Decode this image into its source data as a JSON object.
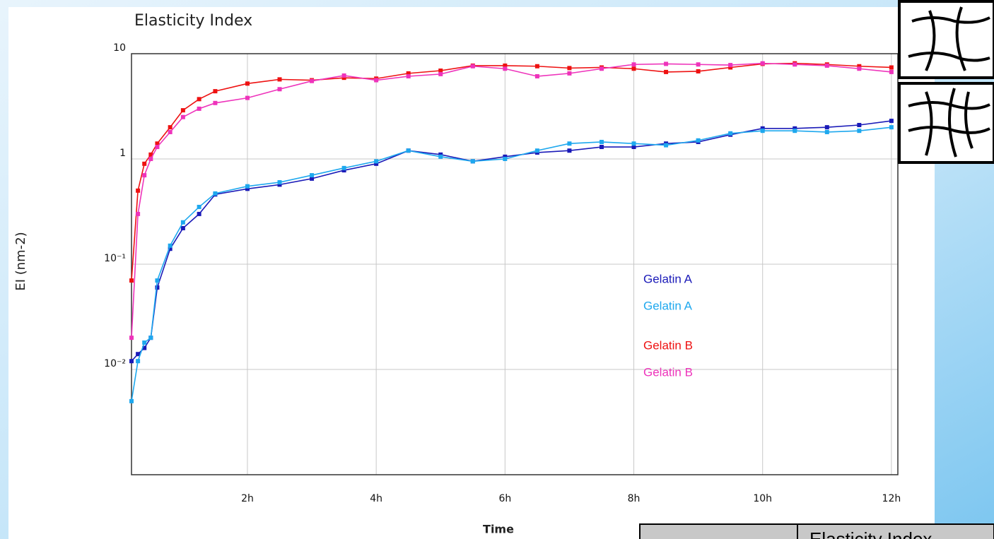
{
  "chart_data": {
    "type": "line",
    "title": "Elasticity Index",
    "x_label": "Time",
    "y_label": "EI (nm-2)",
    "x": [
      0.2,
      0.3,
      0.4,
      0.5,
      0.6,
      0.8,
      1.0,
      1.25,
      1.5,
      2,
      2.5,
      3,
      3.5,
      4,
      4.5,
      5,
      5.5,
      6,
      6.5,
      7,
      7.5,
      8,
      8.5,
      9,
      9.5,
      10,
      10.5,
      11,
      11.5,
      12
    ],
    "series": [
      {
        "name": "Gelatin A",
        "color": "#1a1ab8",
        "values": [
          0.012,
          0.014,
          0.016,
          0.02,
          0.06,
          0.14,
          0.22,
          0.3,
          0.46,
          0.52,
          0.57,
          0.65,
          0.78,
          0.9,
          1.2,
          1.1,
          0.95,
          1.05,
          1.15,
          1.2,
          1.3,
          1.3,
          1.4,
          1.45,
          1.7,
          1.95,
          1.95,
          2.0,
          2.1,
          2.3
        ]
      },
      {
        "name": "Gelatin A",
        "color": "#1ea8ee",
        "values": [
          0.005,
          0.012,
          0.018,
          0.02,
          0.07,
          0.15,
          0.25,
          0.35,
          0.47,
          0.55,
          0.6,
          0.7,
          0.82,
          0.95,
          1.2,
          1.05,
          0.95,
          1.0,
          1.2,
          1.4,
          1.45,
          1.4,
          1.35,
          1.5,
          1.75,
          1.85,
          1.85,
          1.8,
          1.85,
          2.0
        ]
      },
      {
        "name": "Gelatin B",
        "color": "#ee1111",
        "values": [
          0.07,
          0.5,
          0.9,
          1.1,
          1.4,
          2.0,
          2.9,
          3.7,
          4.4,
          5.2,
          5.7,
          5.6,
          5.9,
          5.8,
          6.5,
          6.9,
          7.7,
          7.7,
          7.6,
          7.3,
          7.4,
          7.2,
          6.7,
          6.8,
          7.4,
          8.0,
          8.1,
          7.9,
          7.6,
          7.4
        ]
      },
      {
        "name": "Gelatin B",
        "color": "#ee33bb",
        "values": [
          0.02,
          0.3,
          0.7,
          1.0,
          1.3,
          1.8,
          2.5,
          3.0,
          3.4,
          3.8,
          4.6,
          5.5,
          6.2,
          5.6,
          6.1,
          6.4,
          7.6,
          7.2,
          6.1,
          6.5,
          7.2,
          7.9,
          8.0,
          7.9,
          7.8,
          8.1,
          7.9,
          7.7,
          7.2,
          6.7
        ]
      }
    ],
    "xlim": [
      0.2,
      12.1
    ],
    "ylim": [
      0.001,
      10
    ],
    "y_scale": "log",
    "grid": true,
    "xticks": [
      {
        "value": 2,
        "label": "2h"
      },
      {
        "value": 4,
        "label": "4h"
      },
      {
        "value": 6,
        "label": "6h"
      },
      {
        "value": 8,
        "label": "8h"
      },
      {
        "value": 10,
        "label": "10h"
      },
      {
        "value": 12,
        "label": "12h"
      }
    ],
    "yticks": [
      {
        "value": 0.01,
        "label": "10⁻²"
      },
      {
        "value": 0.1,
        "label": "10⁻¹"
      },
      1,
      10
    ]
  },
  "slide": {
    "table_header": "Elasticity Index"
  }
}
